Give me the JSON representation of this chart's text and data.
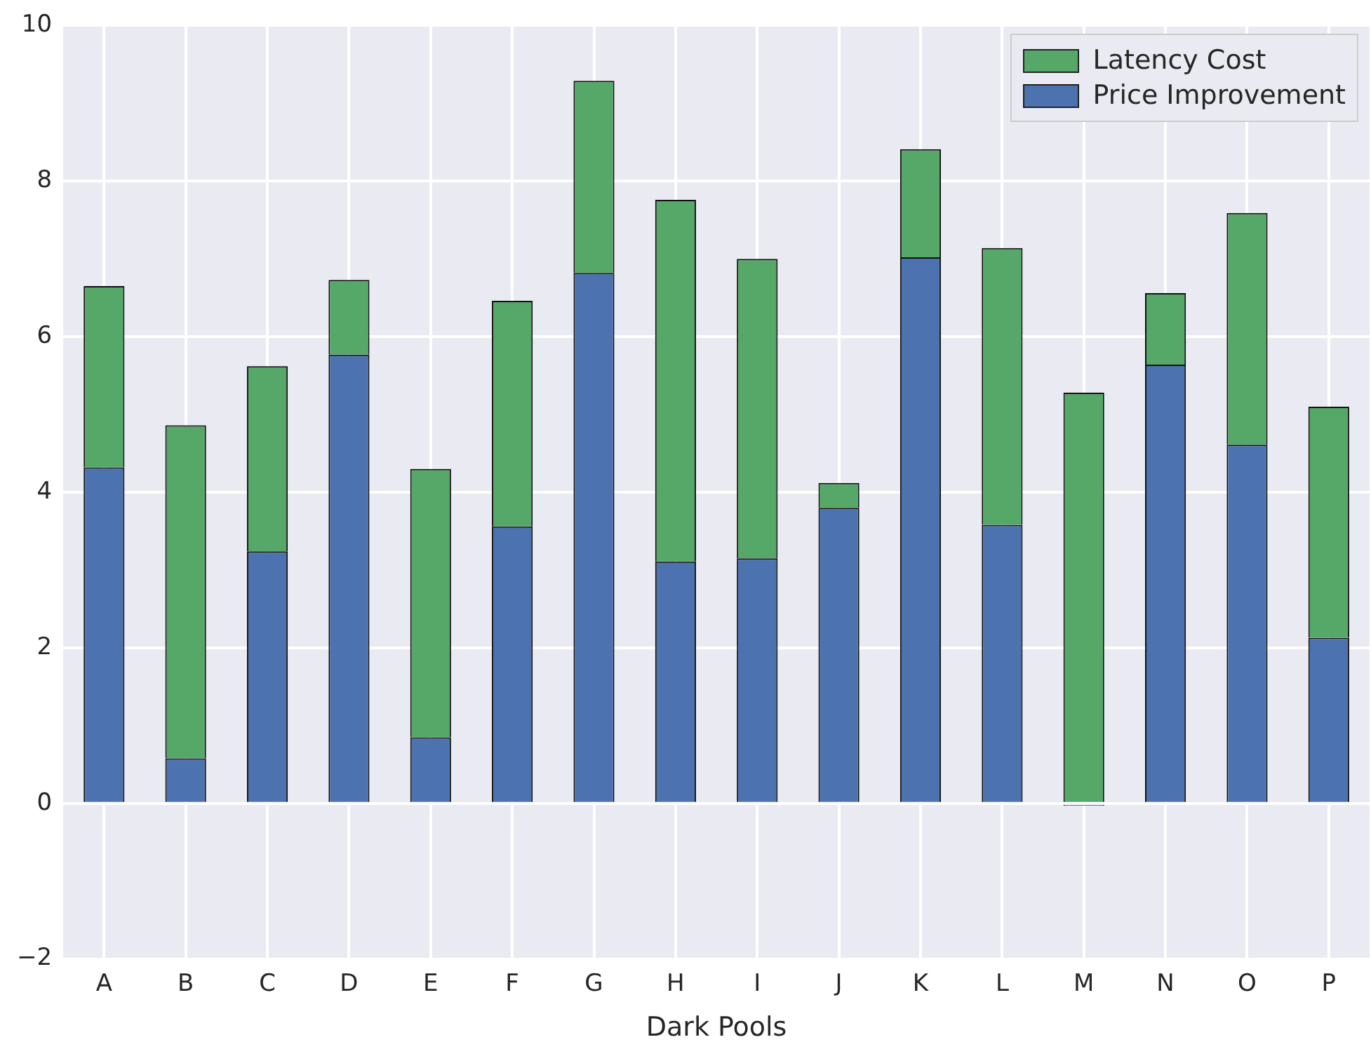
{
  "chart_data": {
    "type": "bar",
    "stacked": true,
    "xlabel": "Dark Pools",
    "categories": [
      "A",
      "B",
      "C",
      "D",
      "E",
      "F",
      "G",
      "H",
      "I",
      "J",
      "K",
      "L",
      "M",
      "N",
      "O",
      "P"
    ],
    "series": [
      {
        "name": "Price Improvement",
        "color": "#4c72b0",
        "values": [
          4.32,
          0.58,
          3.24,
          5.77,
          0.85,
          3.56,
          6.82,
          3.11,
          3.15,
          3.8,
          7.02,
          3.58,
          -0.03,
          5.64,
          4.61,
          2.13
        ]
      },
      {
        "name": "Latency Cost",
        "color": "#55a868",
        "values": [
          2.33,
          4.28,
          2.38,
          0.96,
          3.45,
          2.9,
          2.47,
          4.65,
          3.85,
          0.32,
          1.39,
          3.56,
          5.28,
          0.92,
          2.98,
          2.97
        ]
      }
    ],
    "ylim": [
      -2,
      10
    ],
    "yticks": [
      {
        "value": -2,
        "label": "−2"
      },
      0,
      2,
      4,
      6,
      8,
      10
    ],
    "grid": true,
    "legend": "top right"
  }
}
